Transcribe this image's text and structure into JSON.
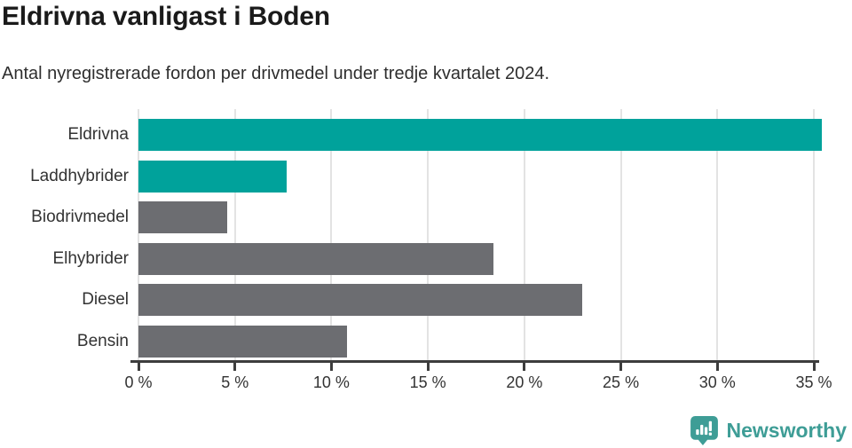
{
  "header": {
    "title": "Eldrivna vanligast i Boden",
    "subtitle": "Antal nyregistrerade fordon per drivmedel under tredje kvartalet 2024."
  },
  "chart_data": {
    "type": "bar",
    "orientation": "horizontal",
    "title": "Eldrivna vanligast i Boden",
    "subtitle": "Antal nyregistrerade fordon per drivmedel under tredje kvartalet 2024.",
    "categories": [
      "Eldrivna",
      "Laddhybrider",
      "Biodrivmedel",
      "Elhybrider",
      "Diesel",
      "Bensin"
    ],
    "values": [
      35.4,
      7.7,
      4.6,
      18.4,
      23.0,
      10.8
    ],
    "unit": "%",
    "bar_colors": [
      "#00a29b",
      "#00a29b",
      "#6c6d71",
      "#6c6d71",
      "#6c6d71",
      "#6c6d71"
    ],
    "accent_color": "#00a29b",
    "neutral_color": "#6c6d71",
    "x_ticks": [
      0,
      5,
      10,
      15,
      20,
      25,
      30,
      35
    ],
    "x_tick_labels": [
      "0 %",
      "5 %",
      "10 %",
      "15 %",
      "20 %",
      "25 %",
      "30 %",
      "35 %"
    ],
    "xlim": [
      0,
      35.8
    ],
    "xlabel": "",
    "ylabel": "",
    "grid": "vertical",
    "legend": "none"
  },
  "footer": {
    "brand": "Newsworthy",
    "brand_color": "#3e9d96",
    "logo_icon": "bar-chart-speech-bubble-icon"
  }
}
